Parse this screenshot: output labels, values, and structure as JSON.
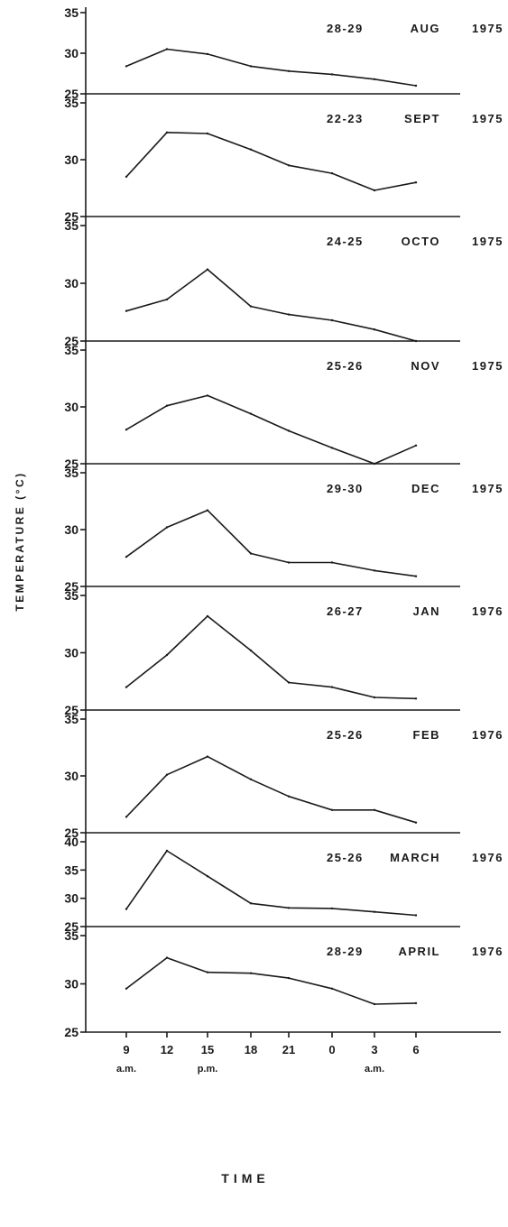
{
  "chart_data": {
    "type": "line",
    "xlabel": "TIME",
    "ylabel": "TEMPERATURE (°C)",
    "x": [
      "9",
      "12",
      "15",
      "18",
      "21",
      "0",
      "3",
      "6"
    ],
    "x_sublabels": [
      {
        "at": "9",
        "text": "a.m."
      },
      {
        "at": "15",
        "text": "p.m."
      },
      {
        "at": "3",
        "text": "a.m."
      }
    ],
    "grid": false,
    "panels": [
      {
        "days": "28-29",
        "month": "AUG",
        "year": "1975",
        "ylim": [
          25,
          35
        ],
        "yticks": [
          25,
          30,
          35
        ],
        "values": [
          28.4,
          30.5,
          29.9,
          28.4,
          27.8,
          27.4,
          26.8,
          26.0
        ]
      },
      {
        "days": "22-23",
        "month": "SEPT",
        "year": "1975",
        "ylim": [
          25,
          35
        ],
        "yticks": [
          25,
          30,
          35
        ],
        "values": [
          28.5,
          32.4,
          32.3,
          30.9,
          29.5,
          28.8,
          27.3,
          28.0
        ]
      },
      {
        "days": "24-25",
        "month": "OCTO",
        "year": "1975",
        "ylim": [
          25,
          35
        ],
        "yticks": [
          25,
          30,
          35
        ],
        "values": [
          27.6,
          28.6,
          31.2,
          28.0,
          27.3,
          26.8,
          26.0,
          25.0
        ]
      },
      {
        "days": "25-26",
        "month": "NOV",
        "year": "1975",
        "ylim": [
          25,
          35
        ],
        "yticks": [
          25,
          30,
          35
        ],
        "values": [
          28.0,
          30.1,
          31.0,
          29.4,
          27.9,
          26.4,
          25.0,
          26.6
        ]
      },
      {
        "days": "29-30",
        "month": "DEC",
        "year": "1975",
        "ylim": [
          25,
          35
        ],
        "yticks": [
          25,
          30,
          35
        ],
        "values": [
          27.6,
          30.2,
          31.7,
          27.9,
          27.1,
          27.1,
          26.4,
          25.9
        ]
      },
      {
        "days": "26-27",
        "month": "JAN",
        "year": "1976",
        "ylim": [
          25,
          35
        ],
        "yticks": [
          25,
          30,
          35
        ],
        "values": [
          27.0,
          29.8,
          33.2,
          30.2,
          27.4,
          27.0,
          26.1,
          26.0
        ]
      },
      {
        "days": "25-26",
        "month": "FEB",
        "year": "1976",
        "ylim": [
          25,
          35
        ],
        "yticks": [
          25,
          30,
          35
        ],
        "values": [
          26.4,
          30.1,
          31.7,
          29.7,
          28.2,
          27.0,
          27.0,
          25.9
        ]
      },
      {
        "days": "25-26",
        "month": "MARCH",
        "year": "1976",
        "ylim": [
          25,
          40
        ],
        "yticks": [
          25,
          30,
          35,
          40
        ],
        "values": [
          28.1,
          38.4,
          33.9,
          29.1,
          28.3,
          28.2,
          27.6,
          27.0
        ]
      },
      {
        "days": "28-29",
        "month": "APRIL",
        "year": "1976",
        "ylim": [
          25,
          35
        ],
        "yticks": [
          25,
          30,
          35
        ],
        "values": [
          29.5,
          32.7,
          31.2,
          31.1,
          30.6,
          29.5,
          27.9,
          28.0
        ]
      }
    ]
  }
}
